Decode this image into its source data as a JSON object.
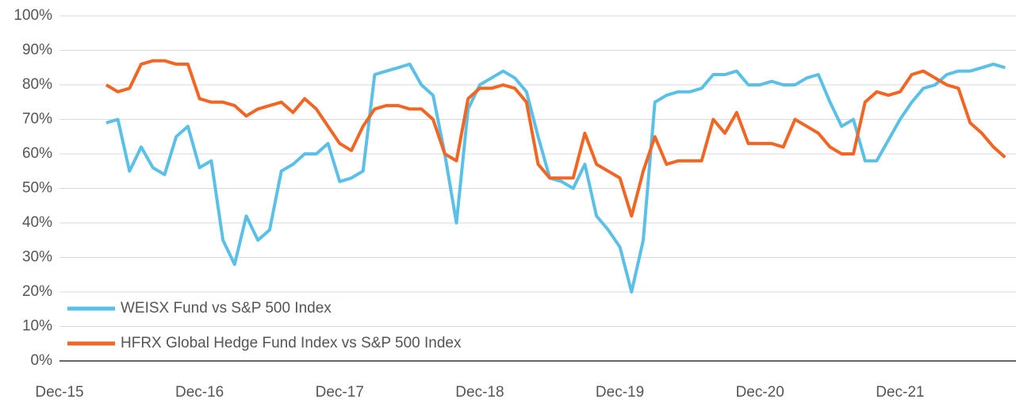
{
  "chart_data": {
    "type": "line",
    "x": [
      "Dec-15",
      "Jan-16",
      "Feb-16",
      "Mar-16",
      "Apr-16",
      "May-16",
      "Jun-16",
      "Jul-16",
      "Aug-16",
      "Sep-16",
      "Oct-16",
      "Nov-16",
      "Dec-16",
      "Jan-17",
      "Feb-17",
      "Mar-17",
      "Apr-17",
      "May-17",
      "Jun-17",
      "Jul-17",
      "Aug-17",
      "Sep-17",
      "Oct-17",
      "Nov-17",
      "Dec-17",
      "Jan-18",
      "Feb-18",
      "Mar-18",
      "Apr-18",
      "May-18",
      "Jun-18",
      "Jul-18",
      "Aug-18",
      "Sep-18",
      "Oct-18",
      "Nov-18",
      "Dec-18",
      "Jan-19",
      "Feb-19",
      "Mar-19",
      "Apr-19",
      "May-19",
      "Jun-19",
      "Jul-19",
      "Aug-19",
      "Sep-19",
      "Oct-19",
      "Nov-19",
      "Dec-19",
      "Jan-20",
      "Feb-20",
      "Mar-20",
      "Apr-20",
      "May-20",
      "Jun-20",
      "Jul-20",
      "Aug-20",
      "Sep-20",
      "Oct-20",
      "Nov-20",
      "Dec-20",
      "Jan-21",
      "Feb-21",
      "Mar-21",
      "Apr-21",
      "May-21",
      "Jun-21",
      "Jul-21",
      "Aug-21",
      "Sep-21",
      "Oct-21",
      "Nov-21",
      "Dec-21",
      "Jan-22",
      "Feb-22",
      "Mar-22",
      "Apr-22",
      "May-22",
      "Jun-22",
      "Jul-22",
      "Aug-22",
      "Sep-22"
    ],
    "series": [
      {
        "name": "WEISX Fund vs S&P 500 Index",
        "color": "#5bc0e8",
        "values": [
          null,
          null,
          null,
          null,
          69,
          70,
          55,
          62,
          56,
          54,
          65,
          68,
          56,
          58,
          35,
          28,
          42,
          35,
          38,
          55,
          57,
          60,
          60,
          63,
          52,
          53,
          55,
          83,
          84,
          85,
          86,
          80,
          77,
          60,
          40,
          73,
          80,
          82,
          84,
          82,
          78,
          65,
          53,
          52,
          50,
          57,
          42,
          38,
          33,
          20,
          35,
          75,
          77,
          78,
          78,
          79,
          83,
          83,
          84,
          80,
          80,
          81,
          80,
          80,
          82,
          83,
          75,
          68,
          70,
          58,
          58,
          64,
          70,
          75,
          79,
          80,
          83,
          84,
          84,
          85,
          86,
          85
        ]
      },
      {
        "name": "HFRX Global Hedge Fund Index vs S&P 500 Index",
        "color": "#f26522",
        "values": [
          null,
          null,
          null,
          null,
          80,
          78,
          79,
          86,
          87,
          87,
          86,
          86,
          76,
          75,
          75,
          74,
          71,
          73,
          74,
          75,
          72,
          76,
          73,
          68,
          63,
          61,
          68,
          73,
          74,
          74,
          73,
          73,
          70,
          60,
          58,
          76,
          79,
          79,
          80,
          79,
          75,
          57,
          53,
          53,
          53,
          66,
          57,
          55,
          53,
          42,
          55,
          65,
          57,
          58,
          58,
          58,
          70,
          66,
          72,
          63,
          63,
          63,
          62,
          70,
          68,
          66,
          62,
          60,
          60,
          75,
          78,
          77,
          78,
          83,
          84,
          82,
          80,
          79,
          69,
          66,
          62,
          59
        ]
      }
    ],
    "xticks": [
      "Dec-15",
      "Dec-16",
      "Dec-17",
      "Dec-18",
      "Dec-19",
      "Dec-20",
      "Dec-21"
    ],
    "ylim": [
      0,
      100
    ],
    "yticks": [
      {
        "value": 0,
        "label": "0%"
      },
      {
        "value": 10,
        "label": "10%"
      },
      {
        "value": 20,
        "label": "20%"
      },
      {
        "value": 30,
        "label": "30%"
      },
      {
        "value": 40,
        "label": "40%"
      },
      {
        "value": 50,
        "label": "50%"
      },
      {
        "value": 60,
        "label": "60%"
      },
      {
        "value": 70,
        "label": "70%"
      },
      {
        "value": 80,
        "label": "80%"
      },
      {
        "value": 90,
        "label": "90%"
      },
      {
        "value": 100,
        "label": "100%"
      }
    ],
    "grid": true,
    "legend": "lower left"
  }
}
